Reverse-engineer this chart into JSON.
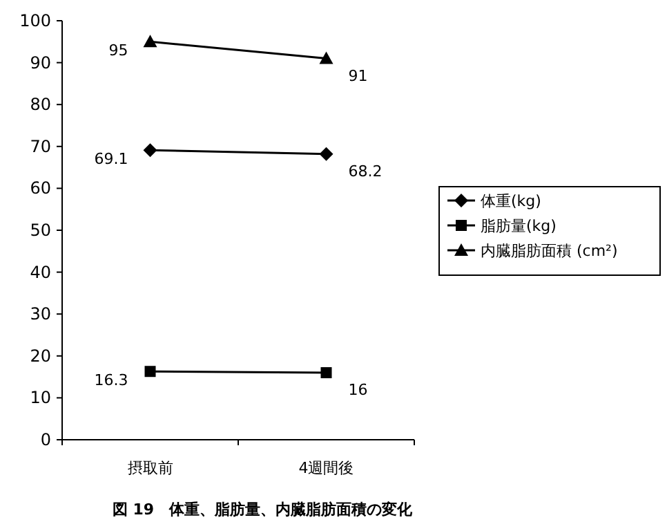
{
  "chart_data": {
    "type": "line",
    "title": "図 19　体重、脂肪量、内臓脂肪面積の変化",
    "categories": [
      "摂取前",
      "4週間後"
    ],
    "series": [
      {
        "name": "体重(kg)",
        "color": "#000000",
        "marker": "diamond",
        "values": [
          69.1,
          68.2
        ]
      },
      {
        "name": "脂肪量(kg)",
        "color": "#000000",
        "marker": "square",
        "values": [
          16.3,
          16
        ]
      },
      {
        "name": "内臓脂肪面積 (cm²)",
        "color": "#000000",
        "marker": "triangle",
        "values": [
          95,
          91
        ]
      }
    ],
    "ylim": [
      0,
      100
    ],
    "yticks": [
      0,
      10,
      20,
      30,
      40,
      50,
      60,
      70,
      80,
      90,
      100
    ],
    "data_labels": true,
    "legend": "right",
    "grid": false,
    "line_style": "solid"
  }
}
